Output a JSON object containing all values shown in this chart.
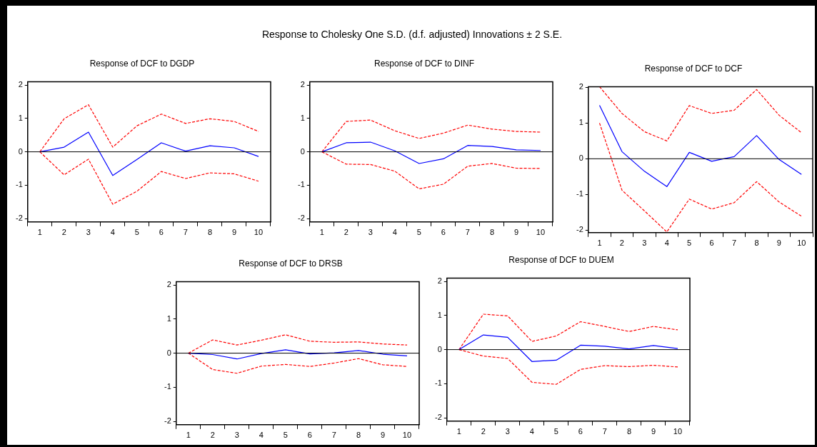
{
  "chart_data": [
    {
      "type": "line",
      "title": "Response of DCF to DGDP",
      "annotations": [
        "Response to Cholesky One S.D. (d.f. adjusted) Innovations ± 2 S.E."
      ],
      "categories": [
        "1",
        "2",
        "3",
        "4",
        "5",
        "6",
        "7",
        "8",
        "9",
        "10"
      ],
      "ylim": [
        -2.1,
        2.1
      ],
      "yticks": [
        -2,
        -1,
        0,
        1,
        2
      ],
      "grid": false,
      "legend": false,
      "ref_lines": [
        {
          "axis": "y",
          "value": 0,
          "color": "#000000"
        }
      ],
      "series": [
        {
          "color": "#0000ff",
          "line_style": "solid",
          "values": [
            0,
            0.14,
            0.59,
            -0.71,
            -0.23,
            0.27,
            0.02,
            0.18,
            0.12,
            -0.14
          ]
        },
        {
          "color": "#ff0000",
          "line_style": "dashed",
          "values": [
            0,
            0.99,
            1.41,
            0.14,
            0.78,
            1.13,
            0.85,
            0.99,
            0.91,
            0.61
          ]
        },
        {
          "color": "#ff0000",
          "line_style": "dashed",
          "values": [
            0,
            -0.69,
            -0.22,
            -1.57,
            -1.18,
            -0.59,
            -0.8,
            -0.63,
            -0.66,
            -0.88
          ]
        }
      ]
    },
    {
      "type": "line",
      "title": "Response of DCF to DINF",
      "categories": [
        "1",
        "2",
        "3",
        "4",
        "5",
        "6",
        "7",
        "8",
        "9",
        "10"
      ],
      "ylim": [
        -2.1,
        2.1
      ],
      "yticks": [
        -2,
        -1,
        0,
        1,
        2
      ],
      "grid": false,
      "legend": false,
      "ref_lines": [
        {
          "axis": "y",
          "value": 0,
          "color": "#000000"
        }
      ],
      "series": [
        {
          "color": "#0000ff",
          "line_style": "solid",
          "values": [
            0,
            0.27,
            0.29,
            0.03,
            -0.35,
            -0.21,
            0.19,
            0.16,
            0.06,
            0.04
          ]
        },
        {
          "color": "#ff0000",
          "line_style": "dashed",
          "values": [
            0,
            0.91,
            0.95,
            0.63,
            0.4,
            0.56,
            0.8,
            0.68,
            0.61,
            0.59
          ]
        },
        {
          "color": "#ff0000",
          "line_style": "dashed",
          "values": [
            0,
            -0.37,
            -0.38,
            -0.58,
            -1.11,
            -0.97,
            -0.43,
            -0.35,
            -0.49,
            -0.5
          ]
        }
      ]
    },
    {
      "type": "line",
      "title": "Response of DCF to DCF",
      "categories": [
        "1",
        "2",
        "3",
        "4",
        "5",
        "6",
        "7",
        "8",
        "9",
        "10"
      ],
      "ylim": [
        -2.07,
        2.02
      ],
      "yticks": [
        -2,
        -1,
        0,
        1,
        2
      ],
      "grid": false,
      "legend": false,
      "ref_lines": [
        {
          "axis": "y",
          "value": 0,
          "color": "#000000"
        }
      ],
      "series": [
        {
          "color": "#0000ff",
          "line_style": "solid",
          "values": [
            1.5,
            0.2,
            -0.35,
            -0.78,
            0.18,
            -0.07,
            0.06,
            0.65,
            -0.02,
            -0.44
          ]
        },
        {
          "color": "#ff0000",
          "line_style": "dashed",
          "values": [
            2.02,
            1.27,
            0.76,
            0.5,
            1.49,
            1.27,
            1.36,
            1.94,
            1.22,
            0.73
          ]
        },
        {
          "color": "#ff0000",
          "line_style": "dashed",
          "values": [
            1,
            -0.88,
            -1.46,
            -2.05,
            -1.13,
            -1.41,
            -1.23,
            -0.64,
            -1.21,
            -1.61
          ]
        }
      ]
    },
    {
      "type": "line",
      "title": "Response of DCF to DRSB",
      "categories": [
        "1",
        "2",
        "3",
        "4",
        "5",
        "6",
        "7",
        "8",
        "9",
        "10"
      ],
      "ylim": [
        -2.1,
        2.1
      ],
      "yticks": [
        -2,
        -1,
        0,
        1,
        2
      ],
      "grid": false,
      "legend": false,
      "ref_lines": [
        {
          "axis": "y",
          "value": 0,
          "color": "#000000"
        }
      ],
      "series": [
        {
          "color": "#0000ff",
          "line_style": "solid",
          "values": [
            0,
            -0.04,
            -0.17,
            -0.01,
            0.1,
            -0.02,
            0.01,
            0.08,
            -0.03,
            -0.08
          ]
        },
        {
          "color": "#ff0000",
          "line_style": "dashed",
          "values": [
            0,
            0.39,
            0.24,
            0.38,
            0.54,
            0.35,
            0.32,
            0.33,
            0.27,
            0.24
          ]
        },
        {
          "color": "#ff0000",
          "line_style": "dashed",
          "values": [
            0,
            -0.48,
            -0.59,
            -0.38,
            -0.33,
            -0.39,
            -0.29,
            -0.16,
            -0.34,
            -0.39
          ]
        }
      ]
    },
    {
      "type": "line",
      "title": "Response of DCF to DUEM",
      "categories": [
        "1",
        "2",
        "3",
        "4",
        "5",
        "6",
        "7",
        "8",
        "9",
        "10"
      ],
      "ylim": [
        -2.1,
        2.1
      ],
      "yticks": [
        -2,
        -1,
        0,
        1,
        2
      ],
      "grid": false,
      "legend": false,
      "ref_lines": [
        {
          "axis": "y",
          "value": 0,
          "color": "#000000"
        }
      ],
      "series": [
        {
          "color": "#0000ff",
          "line_style": "solid",
          "values": [
            0,
            0.43,
            0.36,
            -0.35,
            -0.31,
            0.13,
            0.1,
            0.02,
            0.12,
            0.03
          ]
        },
        {
          "color": "#ff0000",
          "line_style": "dashed",
          "values": [
            0,
            1.04,
            0.99,
            0.24,
            0.4,
            0.82,
            0.68,
            0.53,
            0.68,
            0.58
          ]
        },
        {
          "color": "#ff0000",
          "line_style": "dashed",
          "values": [
            0,
            -0.19,
            -0.26,
            -0.96,
            -1.02,
            -0.58,
            -0.47,
            -0.5,
            -0.46,
            -0.51
          ]
        }
      ]
    }
  ]
}
